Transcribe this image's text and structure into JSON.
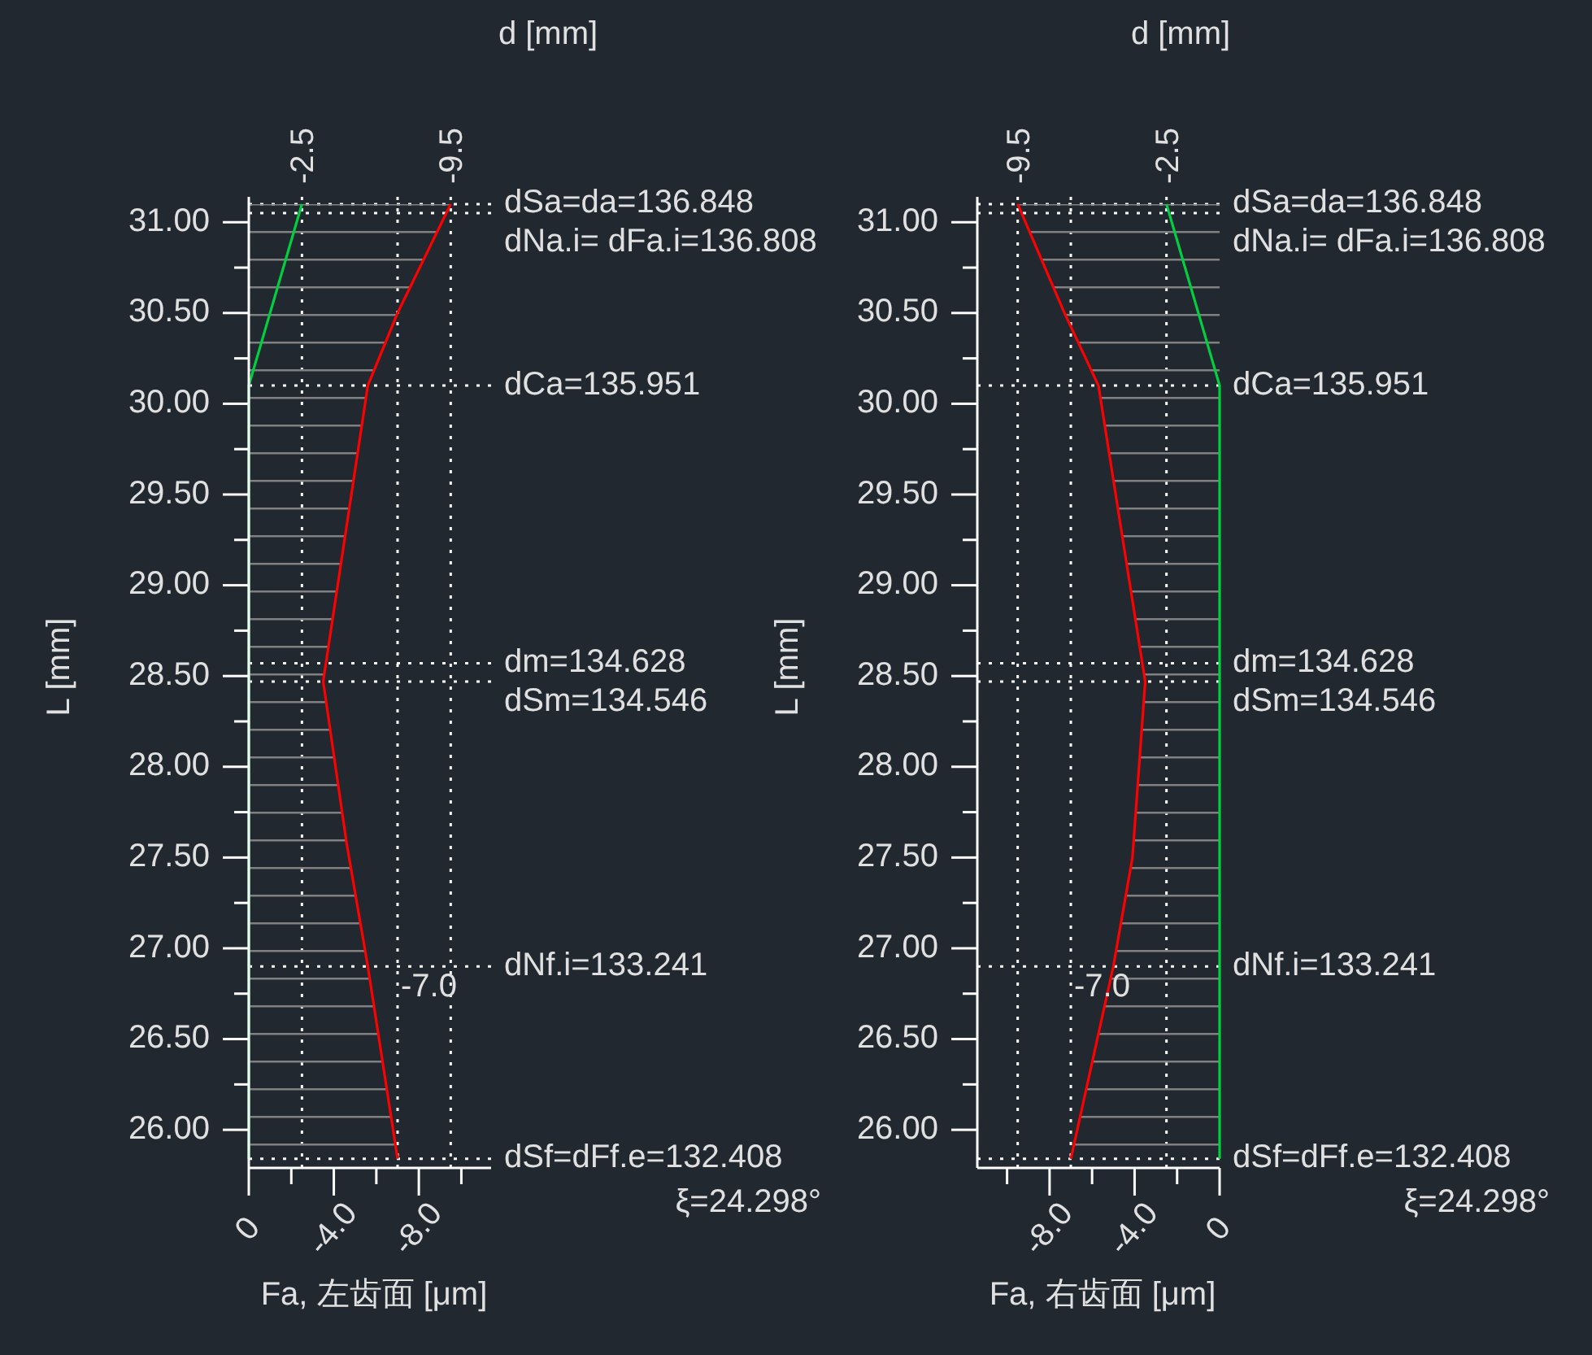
{
  "chart_data": [
    {
      "type": "line",
      "orientation": "horizontal",
      "xlim": [
        0,
        -11.4
      ],
      "ylim": [
        25.79,
        31.14
      ],
      "xticks": [
        {
          "value": 0,
          "label": "0"
        },
        {
          "value": -2,
          "label": null
        },
        {
          "value": -4,
          "label": "-4.0"
        },
        {
          "value": -6,
          "label": null
        },
        {
          "value": -8,
          "label": "-8.0"
        },
        {
          "value": -10,
          "label": null
        }
      ],
      "yticks": [
        {
          "value": 26,
          "label": "26.00"
        },
        {
          "value": 26.25,
          "label": null
        },
        {
          "value": 26.5,
          "label": "26.50"
        },
        {
          "value": 26.75,
          "label": null
        },
        {
          "value": 27,
          "label": "27.00"
        },
        {
          "value": 27.25,
          "label": null
        },
        {
          "value": 27.5,
          "label": "27.50"
        },
        {
          "value": 27.75,
          "label": null
        },
        {
          "value": 28,
          "label": "28.00"
        },
        {
          "value": 28.25,
          "label": null
        },
        {
          "value": 28.5,
          "label": "28.50"
        },
        {
          "value": 28.75,
          "label": null
        },
        {
          "value": 29,
          "label": "29.00"
        },
        {
          "value": 29.25,
          "label": null
        },
        {
          "value": 29.5,
          "label": "29.50"
        },
        {
          "value": 29.75,
          "label": null
        },
        {
          "value": 30,
          "label": "30.00"
        },
        {
          "value": 30.25,
          "label": null
        },
        {
          "value": 30.5,
          "label": "30.50"
        },
        {
          "value": 30.75,
          "label": null
        },
        {
          "value": 31,
          "label": "31.00"
        }
      ],
      "xlabel": "Fa, 左齿面 [μm]",
      "ylabel": "L [mm]",
      "series": [
        {
          "type": "area",
          "color": "#ff0000",
          "x": [
            31.1,
            30.5,
            30.1,
            28.47,
            27.58,
            26.9,
            25.84
          ],
          "values": [
            -9.5,
            -7.0,
            -5.6,
            -3.5,
            -4.6,
            -5.6,
            -7.0
          ]
        },
        {
          "type": "line",
          "color": "#00d040",
          "x": [
            31.1,
            30.1,
            25.84
          ],
          "values": [
            -2.5,
            0,
            0
          ]
        }
      ],
      "ref_lines": [
        {
          "axis": "y",
          "value": 31.1,
          "color": "#ffffff",
          "line_style": "dotted"
        },
        {
          "axis": "y",
          "value": 31.05,
          "color": "#ffffff",
          "line_style": "dotted"
        },
        {
          "axis": "y",
          "value": 30.1,
          "color": "#ffffff",
          "line_style": "dotted"
        },
        {
          "axis": "y",
          "value": 28.57,
          "color": "#ffffff",
          "line_style": "dotted"
        },
        {
          "axis": "y",
          "value": 28.47,
          "color": "#ffffff",
          "line_style": "dotted"
        },
        {
          "axis": "y",
          "value": 26.9,
          "color": "#ffffff",
          "line_style": "dotted"
        },
        {
          "axis": "y",
          "value": 25.84,
          "color": "#ffffff",
          "line_style": "dotted"
        },
        {
          "axis": "x",
          "value": -2.5,
          "label": "-2.5",
          "color": "#ffffff",
          "line_style": "dotted"
        },
        {
          "axis": "x",
          "value": -9.5,
          "label": "-9.5",
          "color": "#ffffff",
          "line_style": "dotted"
        },
        {
          "axis": "x",
          "value": -7.0,
          "color": "#ffffff",
          "line_style": "dotted"
        }
      ],
      "annotations": [
        "d [mm]",
        "ξ=24.298°",
        {
          "text": "dSa=da=136.848",
          "x": -11.4,
          "y": 31.1
        },
        {
          "text": "dNa.i= dFa.i=136.808",
          "x": -11.4,
          "y": 31.05
        },
        {
          "text": "dCa=135.951",
          "x": -11.4,
          "y": 30.1
        },
        {
          "text": "dm=134.628",
          "x": -11.4,
          "y": 28.57
        },
        {
          "text": "dSm=134.546",
          "x": -11.4,
          "y": 28.47
        },
        {
          "text": "dNf.i=133.241",
          "x": -11.4,
          "y": 26.9
        },
        {
          "text": "dSf=dFf.e=132.408",
          "x": -11.4,
          "y": 25.84
        },
        {
          "text": "-7.0",
          "x": -7.0,
          "y": 26.9
        }
      ]
    },
    {
      "type": "line",
      "orientation": "horizontal",
      "xlim": [
        -11.4,
        0
      ],
      "ylim": [
        25.79,
        31.14
      ],
      "xticks": [
        {
          "value": -10,
          "label": null
        },
        {
          "value": -8,
          "label": "-8.0"
        },
        {
          "value": -6,
          "label": null
        },
        {
          "value": -4,
          "label": "-4.0"
        },
        {
          "value": -2,
          "label": null
        },
        {
          "value": 0,
          "label": "0"
        }
      ],
      "yticks": [
        {
          "value": 26,
          "label": "26.00"
        },
        {
          "value": 26.25,
          "label": null
        },
        {
          "value": 26.5,
          "label": "26.50"
        },
        {
          "value": 26.75,
          "label": null
        },
        {
          "value": 27,
          "label": "27.00"
        },
        {
          "value": 27.25,
          "label": null
        },
        {
          "value": 27.5,
          "label": "27.50"
        },
        {
          "value": 27.75,
          "label": null
        },
        {
          "value": 28,
          "label": "28.00"
        },
        {
          "value": 28.25,
          "label": null
        },
        {
          "value": 28.5,
          "label": "28.50"
        },
        {
          "value": 28.75,
          "label": null
        },
        {
          "value": 29,
          "label": "29.00"
        },
        {
          "value": 29.25,
          "label": null
        },
        {
          "value": 29.5,
          "label": "29.50"
        },
        {
          "value": 29.75,
          "label": null
        },
        {
          "value": 30,
          "label": "30.00"
        },
        {
          "value": 30.25,
          "label": null
        },
        {
          "value": 30.5,
          "label": "30.50"
        },
        {
          "value": 30.75,
          "label": null
        },
        {
          "value": 31,
          "label": "31.00"
        }
      ],
      "xlabel": "Fa, 右齿面 [μm]",
      "ylabel": "L [mm]",
      "series": [
        {
          "type": "area",
          "color": "#ff0000",
          "x": [
            31.1,
            30.5,
            30.1,
            28.47,
            27.5,
            26.9,
            25.84
          ],
          "values": [
            -9.5,
            -7.3,
            -5.7,
            -3.5,
            -4.1,
            -5.0,
            -7.0
          ]
        },
        {
          "type": "line",
          "color": "#00d040",
          "x": [
            31.1,
            30.1,
            25.84
          ],
          "values": [
            -2.5,
            0,
            0
          ]
        }
      ],
      "ref_lines": [
        {
          "axis": "y",
          "value": 31.1,
          "color": "#ffffff",
          "line_style": "dotted"
        },
        {
          "axis": "y",
          "value": 31.05,
          "color": "#ffffff",
          "line_style": "dotted"
        },
        {
          "axis": "y",
          "value": 30.1,
          "color": "#ffffff",
          "line_style": "dotted"
        },
        {
          "axis": "y",
          "value": 28.57,
          "color": "#ffffff",
          "line_style": "dotted"
        },
        {
          "axis": "y",
          "value": 28.47,
          "color": "#ffffff",
          "line_style": "dotted"
        },
        {
          "axis": "y",
          "value": 26.9,
          "color": "#ffffff",
          "line_style": "dotted"
        },
        {
          "axis": "y",
          "value": 25.84,
          "color": "#ffffff",
          "line_style": "dotted"
        },
        {
          "axis": "x",
          "value": -2.5,
          "label": "-2.5",
          "color": "#ffffff",
          "line_style": "dotted"
        },
        {
          "axis": "x",
          "value": -9.5,
          "label": "-9.5",
          "color": "#ffffff",
          "line_style": "dotted"
        },
        {
          "axis": "x",
          "value": -7.0,
          "color": "#ffffff",
          "line_style": "dotted"
        }
      ],
      "annotations": [
        "d [mm]",
        "ξ=24.298°",
        {
          "text": "dSa=da=136.848",
          "x": 0,
          "y": 31.1
        },
        {
          "text": "dNa.i= dFa.i=136.808",
          "x": 0,
          "y": 31.05
        },
        {
          "text": "dCa=135.951",
          "x": 0,
          "y": 30.1
        },
        {
          "text": "dm=134.628",
          "x": 0,
          "y": 28.57
        },
        {
          "text": "dSm=134.546",
          "x": 0,
          "y": 28.47
        },
        {
          "text": "dNf.i=133.241",
          "x": 0,
          "y": 26.9
        },
        {
          "text": "dSf=dFf.e=132.408",
          "x": 0,
          "y": 25.84
        },
        {
          "text": "-7.0",
          "x": -7.0,
          "y": 26.9
        }
      ]
    }
  ]
}
